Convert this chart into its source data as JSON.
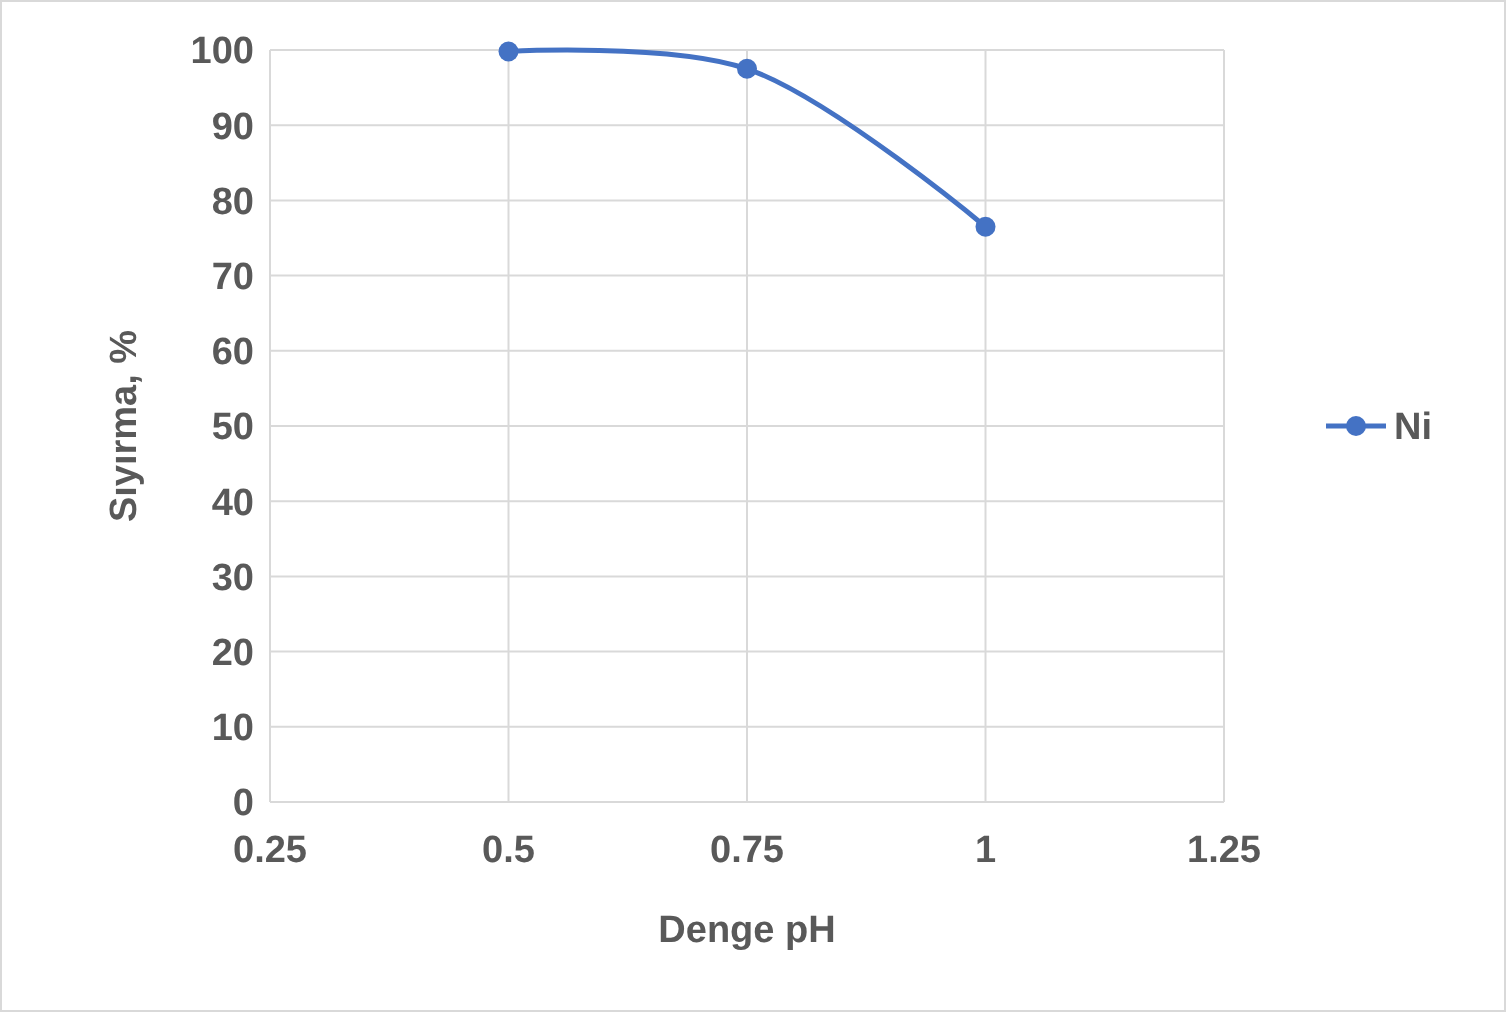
{
  "chart_data": {
    "type": "line",
    "xlabel": "Denge pH",
    "ylabel": "Sıyırma, %",
    "x": [
      0.5,
      0.75,
      1
    ],
    "series": [
      {
        "name": "Ni",
        "color": "#4472c4",
        "values": [
          99.8,
          97.5,
          76.5
        ]
      }
    ],
    "xlim": [
      0.25,
      1.25
    ],
    "xticks": [
      0.25,
      0.5,
      0.75,
      1,
      1.25
    ],
    "ylim": [
      0,
      100
    ],
    "yticks": [
      0,
      10,
      20,
      30,
      40,
      50,
      60,
      70,
      80,
      90,
      100
    ],
    "grid": true,
    "legend": "right",
    "marker": "circle",
    "line_style": "solid"
  }
}
